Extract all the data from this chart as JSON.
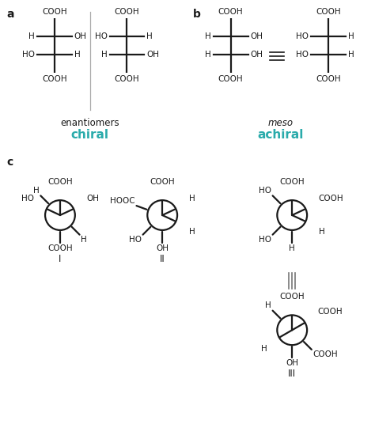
{
  "bg_color": "#ffffff",
  "label_a": "a",
  "label_b": "b",
  "label_c": "c",
  "teal_color": "#2aabab",
  "black_color": "#1a1a1a",
  "gray_color": "#777777",
  "text_enantiomers": "enantiomers",
  "text_chiral": "chiral",
  "text_meso": "meso",
  "text_achiral": "achiral",
  "roman_I": "I",
  "roman_II": "II",
  "roman_III": "III",
  "fig_w": 4.74,
  "fig_h": 5.55,
  "dpi": 100
}
